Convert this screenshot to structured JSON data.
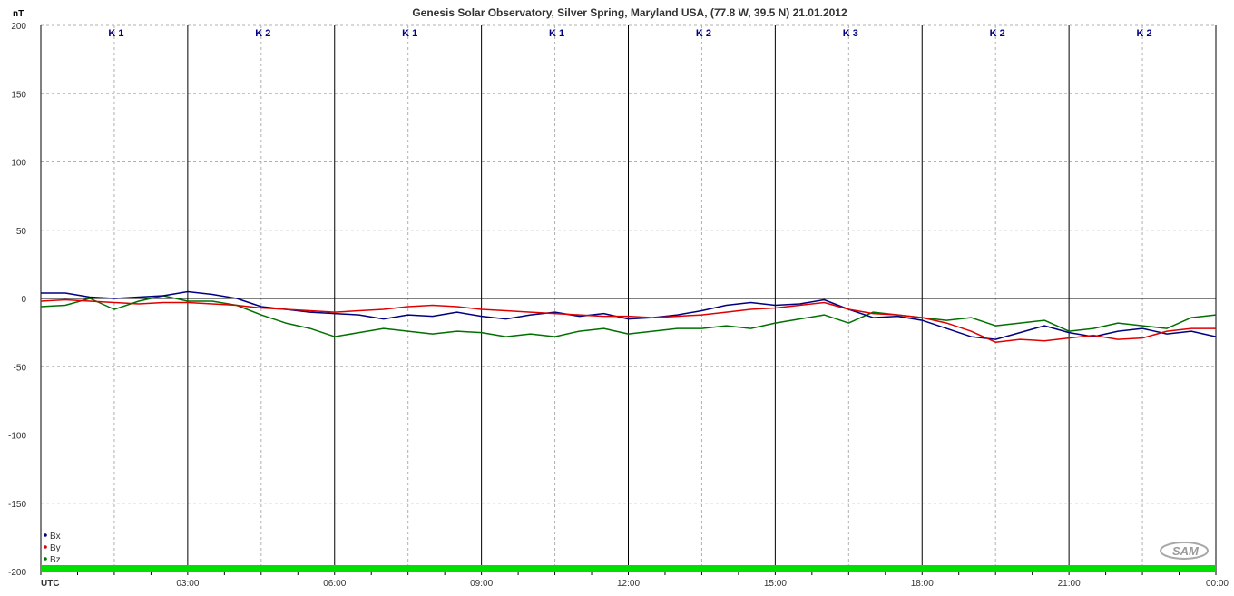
{
  "title": "Genesis Solar Observatory, Silver Spring, Maryland USA, (77.8 W, 39.5 N)  21.01.2012",
  "logo_text": "SAM",
  "colors": {
    "bx": "#000080",
    "by": "#e00000",
    "bz": "#007000",
    "baseline_bar": "#00e000",
    "grid": "#b0b0b0",
    "axis": "#000000",
    "k_label": "#000080"
  },
  "chart_data": {
    "type": "line",
    "ylabel": "nT",
    "xlabel": "UTC",
    "ylim": [
      -200,
      200
    ],
    "xlim_hours": [
      0,
      24
    ],
    "y_ticks": [
      "200",
      "150",
      "100",
      "50",
      "0",
      "-50",
      "-100",
      "-150",
      "-200"
    ],
    "x_ticks": [
      "UTC",
      "03:00",
      "06:00",
      "09:00",
      "12:00",
      "15:00",
      "18:00",
      "21:00",
      "00:00"
    ],
    "k_index": [
      "K 1",
      "K 2",
      "K 1",
      "K 1",
      "K 2",
      "K 3",
      "K 2",
      "K 2"
    ],
    "legend_position": "bottom-left",
    "grid": true,
    "series": [
      {
        "name": "Bx",
        "x": [
          0,
          0.5,
          1,
          1.5,
          2,
          2.5,
          3,
          3.5,
          4,
          4.5,
          5,
          5.5,
          6,
          6.5,
          7,
          7.5,
          8,
          8.5,
          9,
          9.5,
          10,
          10.5,
          11,
          11.5,
          12,
          12.5,
          13,
          13.5,
          14,
          14.5,
          15,
          15.5,
          16,
          16.5,
          17,
          17.5,
          18,
          18.5,
          19,
          19.5,
          20,
          20.5,
          21,
          21.5,
          22,
          22.5,
          23,
          23.5,
          24
        ],
        "values": [
          4,
          4,
          1,
          0,
          1,
          2,
          5,
          3,
          0,
          -6,
          -8,
          -10,
          -11,
          -12,
          -15,
          -12,
          -13,
          -10,
          -13,
          -15,
          -12,
          -10,
          -13,
          -11,
          -15,
          -14,
          -12,
          -9,
          -5,
          -3,
          -5,
          -4,
          -1,
          -8,
          -14,
          -13,
          -16,
          -22,
          -28,
          -30,
          -25,
          -20,
          -25,
          -28,
          -24,
          -22,
          -26,
          -24,
          -28
        ]
      },
      {
        "name": "By",
        "x": [
          0,
          0.5,
          1,
          1.5,
          2,
          2.5,
          3,
          3.5,
          4,
          4.5,
          5,
          5.5,
          6,
          6.5,
          7,
          7.5,
          8,
          8.5,
          9,
          9.5,
          10,
          10.5,
          11,
          11.5,
          12,
          12.5,
          13,
          13.5,
          14,
          14.5,
          15,
          15.5,
          16,
          16.5,
          17,
          17.5,
          18,
          18.5,
          19,
          19.5,
          20,
          20.5,
          21,
          21.5,
          22,
          22.5,
          23,
          23.5,
          24
        ],
        "values": [
          -2,
          -1,
          -2,
          -3,
          -4,
          -3,
          -3,
          -4,
          -5,
          -7,
          -8,
          -9,
          -10,
          -9,
          -8,
          -6,
          -5,
          -6,
          -8,
          -9,
          -10,
          -11,
          -12,
          -13,
          -13,
          -14,
          -13,
          -12,
          -10,
          -8,
          -7,
          -5,
          -3,
          -8,
          -11,
          -12,
          -14,
          -18,
          -24,
          -32,
          -30,
          -31,
          -29,
          -27,
          -30,
          -29,
          -24,
          -22,
          -22
        ]
      },
      {
        "name": "Bz",
        "x": [
          0,
          0.5,
          1,
          1.5,
          2,
          2.5,
          3,
          3.5,
          4,
          4.5,
          5,
          5.5,
          6,
          6.5,
          7,
          7.5,
          8,
          8.5,
          9,
          9.5,
          10,
          10.5,
          11,
          11.5,
          12,
          12.5,
          13,
          13.5,
          14,
          14.5,
          15,
          15.5,
          16,
          16.5,
          17,
          17.5,
          18,
          18.5,
          19,
          19.5,
          20,
          20.5,
          21,
          21.5,
          22,
          22.5,
          23,
          23.5,
          24
        ],
        "values": [
          -6,
          -5,
          0,
          -8,
          -2,
          2,
          -2,
          -2,
          -5,
          -12,
          -18,
          -22,
          -28,
          -25,
          -22,
          -24,
          -26,
          -24,
          -25,
          -28,
          -26,
          -28,
          -24,
          -22,
          -26,
          -24,
          -22,
          -22,
          -20,
          -22,
          -18,
          -15,
          -12,
          -18,
          -10,
          -12,
          -14,
          -16,
          -14,
          -20,
          -18,
          -16,
          -24,
          -22,
          -18,
          -20,
          -22,
          -14,
          -12
        ]
      }
    ]
  }
}
